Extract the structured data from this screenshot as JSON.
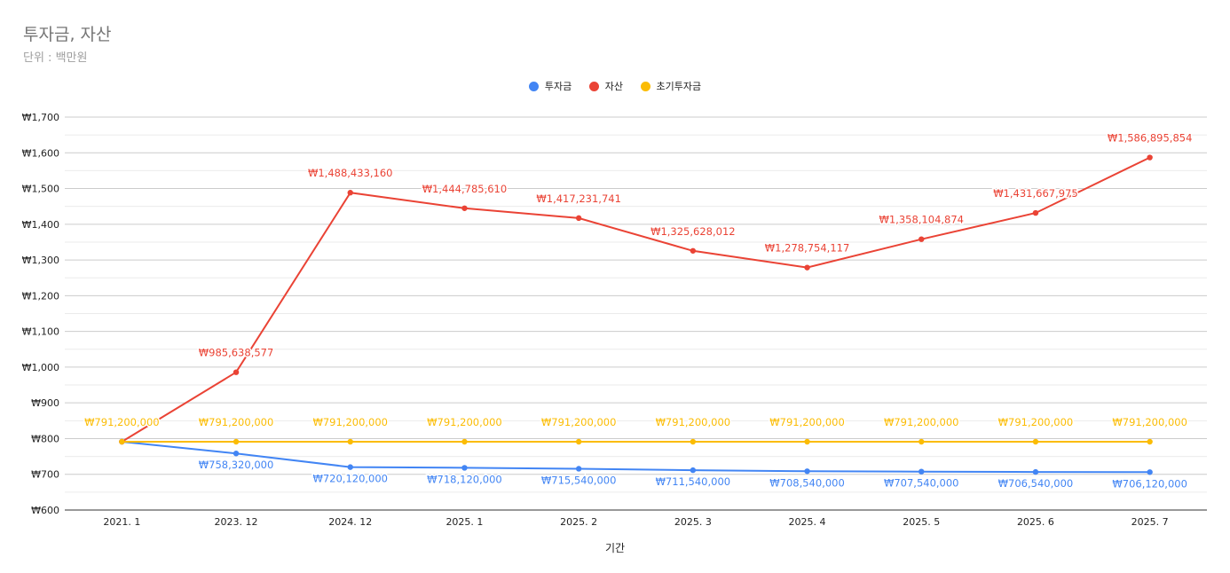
{
  "chart_data": {
    "type": "line",
    "title": "투자금, 자산",
    "subtitle": "단위 : 백만원",
    "xlabel": "기간",
    "ylabel": "",
    "categories": [
      "2021. 1",
      "2023. 12",
      "2024. 12",
      "2025. 1",
      "2025. 2",
      "2025. 3",
      "2025. 4",
      "2025. 5",
      "2025. 6",
      "2025. 7"
    ],
    "ylim": [
      600,
      1700
    ],
    "y_ticks": [
      600,
      700,
      800,
      900,
      1000,
      1100,
      1200,
      1300,
      1400,
      1500,
      1600,
      1700
    ],
    "y_tick_labels": [
      "₩600",
      "₩700",
      "₩800",
      "₩900",
      "₩1,000",
      "₩1,100",
      "₩1,200",
      "₩1,300",
      "₩1,400",
      "₩1,500",
      "₩1,600",
      "₩1,700"
    ],
    "grid": true,
    "legend_position": "top",
    "series": [
      {
        "name": "투자금",
        "color": "#4285f4",
        "label_position": "below",
        "values": [
          791.2,
          758.32,
          720.12,
          718.12,
          715.54,
          711.54,
          708.54,
          707.54,
          706.54,
          706.12
        ],
        "labels": [
          "",
          "₩758,320,000",
          "₩720,120,000",
          "₩718,120,000",
          "₩715,540,000",
          "₩711,540,000",
          "₩708,540,000",
          "₩707,540,000",
          "₩706,540,000",
          "₩706,120,000"
        ]
      },
      {
        "name": "자산",
        "color": "#ea4335",
        "label_position": "above",
        "values": [
          791.2,
          985.638577,
          1488.43316,
          1444.78561,
          1417.231741,
          1325.628012,
          1278.754117,
          1358.104874,
          1431.667975,
          1586.895854
        ],
        "labels": [
          "",
          "₩985,638,577",
          "₩1,488,433,160",
          "₩1,444,785,610",
          "₩1,417,231,741",
          "₩1,325,628,012",
          "₩1,278,754,117",
          "₩1,358,104,874",
          "₩1,431,667,975",
          "₩1,586,895,854"
        ]
      },
      {
        "name": "초기투자금",
        "color": "#fbbc04",
        "label_position": "above",
        "values": [
          791.2,
          791.2,
          791.2,
          791.2,
          791.2,
          791.2,
          791.2,
          791.2,
          791.2,
          791.2
        ],
        "labels": [
          "₩791,200,000",
          "₩791,200,000",
          "₩791,200,000",
          "₩791,200,000",
          "₩791,200,000",
          "₩791,200,000",
          "₩791,200,000",
          "₩791,200,000",
          "₩791,200,000",
          "₩791,200,000"
        ]
      }
    ]
  }
}
